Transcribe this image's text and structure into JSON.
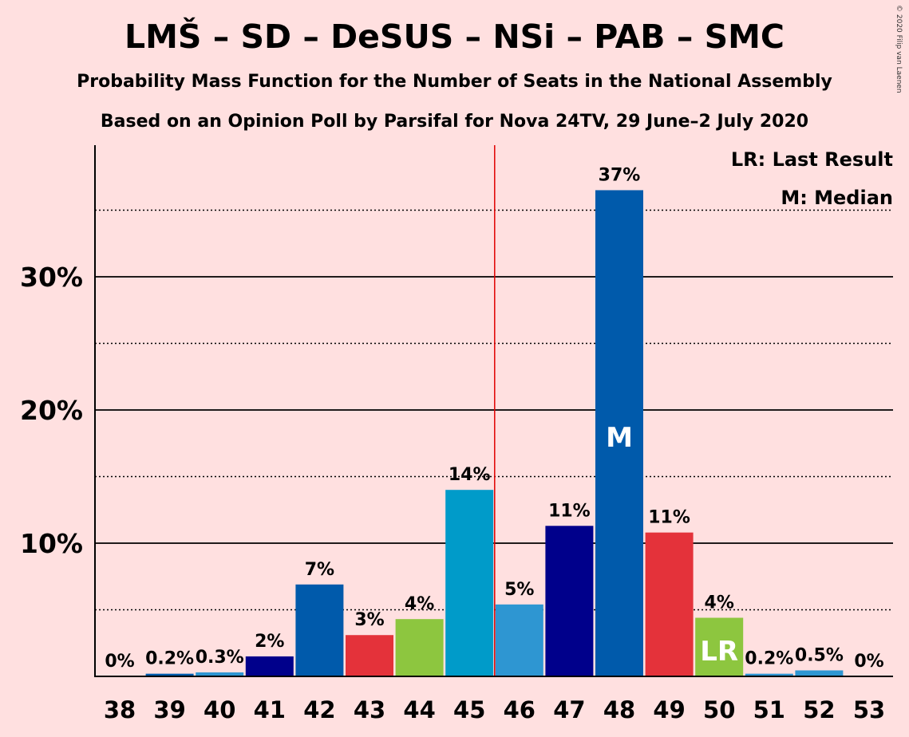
{
  "header": {
    "title": "LMŠ – SD – DeSUS – NSi – PAB – SMC",
    "subtitle1": "Probability Mass Function for the Number of Seats in the National Assembly",
    "subtitle2": "Based on an Opinion Poll by Parsifal for Nova 24TV, 29 June–2 July 2020",
    "copyright": "© 2020 Filip van Laenen"
  },
  "legend": {
    "lr": "LR: Last Result",
    "median": "M: Median"
  },
  "chart_data": {
    "type": "bar",
    "categories": [
      "38",
      "39",
      "40",
      "41",
      "42",
      "43",
      "44",
      "45",
      "46",
      "47",
      "48",
      "49",
      "50",
      "51",
      "52",
      "53"
    ],
    "values": [
      0,
      0.2,
      0.3,
      1.5,
      6.9,
      3.1,
      4.3,
      14.0,
      5.4,
      11.3,
      36.5,
      10.8,
      4.4,
      0.2,
      0.45,
      0
    ],
    "labels": [
      "0%",
      "0.2%",
      "0.3%",
      "2%",
      "7%",
      "3%",
      "4%",
      "14%",
      "5%",
      "11%",
      "37%",
      "11%",
      "4%",
      "0.2%",
      "0.5%",
      "0%"
    ],
    "colors": [
      "#005aab",
      "#005aab",
      "#2e96d2",
      "#00008b",
      "#005aab",
      "#e4323a",
      "#8dc63f",
      "#009bc9",
      "#2e96d2",
      "#00008b",
      "#005aab",
      "#e4323a",
      "#8dc63f",
      "#2e96d2",
      "#2e96d2",
      "#2e96d2"
    ],
    "ylim": [
      0,
      40
    ],
    "yticks": [
      10,
      20,
      30
    ],
    "ytick_labels": [
      "10%",
      "20%",
      "30%"
    ],
    "minor_gridlines": [
      5,
      15,
      25,
      35
    ],
    "majority_threshold_between": [
      "45",
      "46"
    ],
    "threshold_color": "#e00000",
    "median_category": "48",
    "median_label": "M",
    "last_result_category": "50",
    "last_result_label": "LR"
  }
}
